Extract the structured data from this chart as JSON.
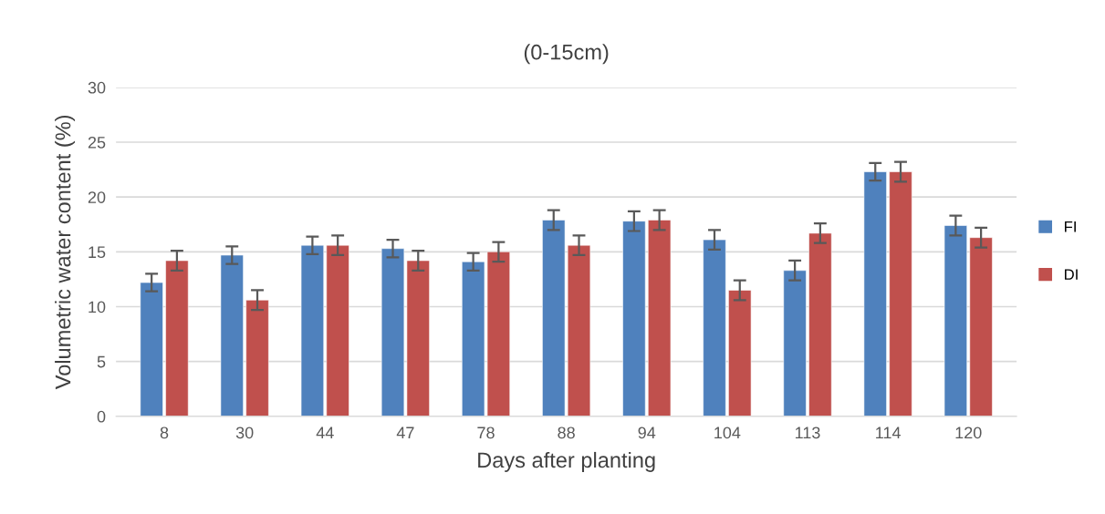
{
  "chart_data": {
    "type": "bar",
    "title": "(0-15cm)",
    "xlabel": "Days after planting",
    "ylabel": "Volumetric water content (%)",
    "categories": [
      "8",
      "30",
      "44",
      "47",
      "78",
      "88",
      "94",
      "104",
      "113",
      "114",
      "120"
    ],
    "series": [
      {
        "name": "FI",
        "color": "#4f81bd",
        "values": [
          12.2,
          14.7,
          15.6,
          15.3,
          14.1,
          17.9,
          17.8,
          16.1,
          13.3,
          22.3,
          17.4
        ],
        "errors": [
          0.8,
          0.8,
          0.8,
          0.8,
          0.8,
          0.9,
          0.9,
          0.9,
          0.9,
          0.8,
          0.9
        ]
      },
      {
        "name": "DI",
        "color": "#c0504d",
        "values": [
          14.2,
          10.6,
          15.6,
          14.2,
          15.0,
          15.6,
          17.9,
          11.5,
          16.7,
          22.3,
          16.3
        ],
        "errors": [
          0.9,
          0.9,
          0.9,
          0.9,
          0.9,
          0.9,
          0.9,
          0.9,
          0.9,
          0.9,
          0.9
        ]
      }
    ],
    "ylim": [
      0,
      30
    ],
    "yticks": [
      0,
      5,
      10,
      15,
      20,
      25,
      30
    ],
    "grid": "y",
    "legend": "right"
  }
}
